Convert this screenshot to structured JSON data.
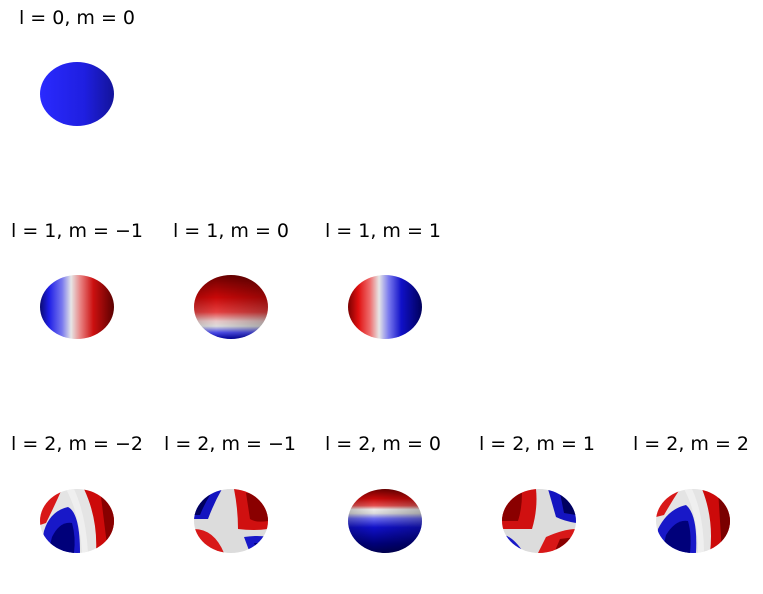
{
  "figure": {
    "panels": [
      {
        "id": "l0m0",
        "l": 0,
        "m": 0,
        "title": "l = 0, m = 0"
      },
      {
        "id": "l1mn1",
        "l": 1,
        "m": -1,
        "title": "l = 1, m = −1"
      },
      {
        "id": "l1m0",
        "l": 1,
        "m": 0,
        "title": "l = 1, m = 0"
      },
      {
        "id": "l1m1",
        "l": 1,
        "m": 1,
        "title": "l = 1, m = 1"
      },
      {
        "id": "l2mn2",
        "l": 2,
        "m": -2,
        "title": "l = 2, m = −2"
      },
      {
        "id": "l2mn1",
        "l": 2,
        "m": -1,
        "title": "l = 2, m = −1"
      },
      {
        "id": "l2m0",
        "l": 2,
        "m": 0,
        "title": "l = 2, m = 0"
      },
      {
        "id": "l2m1",
        "l": 2,
        "m": 1,
        "title": "l = 2, m = 1"
      },
      {
        "id": "l2m2",
        "l": 2,
        "m": 2,
        "title": "l = 2, m = 2"
      }
    ],
    "colors": {
      "positive": "#cc0000",
      "negative": "#0000cc",
      "zero": "#dddddd",
      "uniform": "#2222ee"
    }
  }
}
